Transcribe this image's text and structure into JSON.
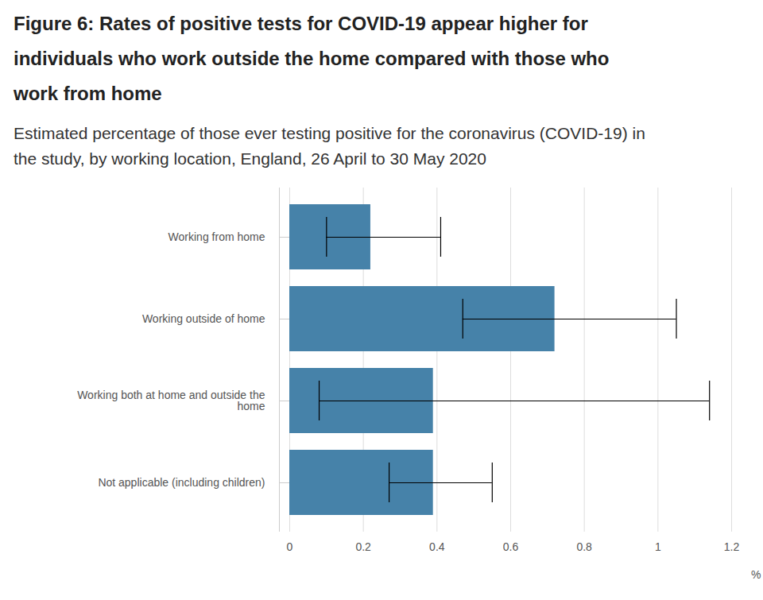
{
  "chart_data": {
    "type": "bar",
    "orientation": "horizontal",
    "title": "Figure 6: Rates of positive tests for COVID-19 appear higher for individuals who work outside the home compared with those who work from home",
    "subtitle": "Estimated percentage of those ever testing positive for the coronavirus (COVID-19) in the study, by working location, England, 26 April to 30 May 2020",
    "categories": [
      "Working from home",
      "Working outside of home",
      "Working both at home and outside the home",
      "Not applicable (including children)"
    ],
    "values": [
      0.22,
      0.72,
      0.39,
      0.39
    ],
    "ci_lower": [
      0.1,
      0.47,
      0.08,
      0.27
    ],
    "ci_upper": [
      0.41,
      1.05,
      1.14,
      0.55
    ],
    "color": "#4682a9",
    "xlabel": "%",
    "xlim": [
      0,
      1.2
    ],
    "xticks": [
      0,
      0.2,
      0.4,
      0.6,
      0.8,
      1,
      1.2
    ],
    "grid": true
  }
}
